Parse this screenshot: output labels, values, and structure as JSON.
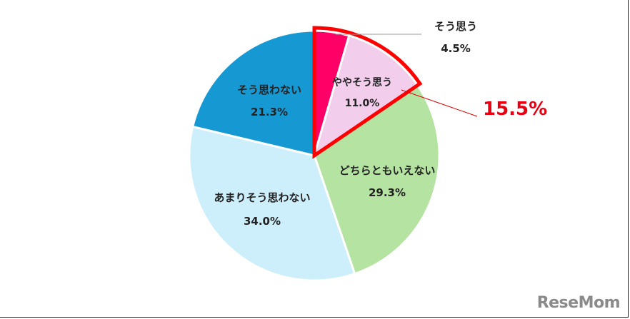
{
  "chart_data": {
    "type": "pie",
    "title": "",
    "slices": [
      {
        "label": "そう思う",
        "value": 4.5,
        "display": "4.5%",
        "color": "#ff0066"
      },
      {
        "label": "ややそう思う",
        "value": 11.0,
        "display": "11.0%",
        "color": "#f2cdec"
      },
      {
        "label": "どちらともいえない",
        "value": 29.3,
        "display": "29.3%",
        "color": "#b5e3a1"
      },
      {
        "label": "あまりそう思わない",
        "value": 34.0,
        "display": "34.0%",
        "color": "#cdeefb"
      },
      {
        "label": "そう思わない",
        "value": 21.3,
        "display": "21.3%",
        "color": "#1699d3"
      }
    ],
    "annotations": [
      {
        "text": "15.5%",
        "color": "#e60012",
        "note": "sum of そう思う + ややそう思う, highlighted with red outline"
      }
    ],
    "start_angle": "12 o'clock, clockwise"
  },
  "labels": {
    "s0_name": "そう思う",
    "s0_val": "4.5%",
    "s1_name": "ややそう思う",
    "s1_val": "11.0%",
    "s2_name": "どちらともいえない",
    "s2_val": "29.3%",
    "s3_name": "あまりそう思わない",
    "s3_val": "34.0%",
    "s4_name": "そう思わない",
    "s4_val": "21.3%",
    "highlight": "15.5%"
  },
  "logo": "ReseMom"
}
